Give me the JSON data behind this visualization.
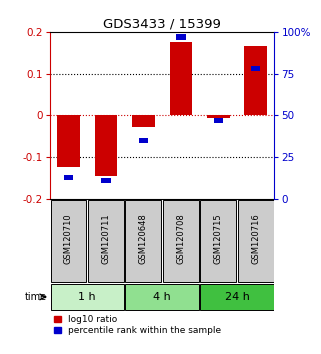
{
  "title": "GDS3433 / 15399",
  "samples": [
    "GSM120710",
    "GSM120711",
    "GSM120648",
    "GSM120708",
    "GSM120715",
    "GSM120716"
  ],
  "groups": [
    {
      "label": "1 h",
      "indices": [
        0,
        1
      ],
      "color": "#c8f0c8"
    },
    {
      "label": "4 h",
      "indices": [
        2,
        3
      ],
      "color": "#90e090"
    },
    {
      "label": "24 h",
      "indices": [
        4,
        5
      ],
      "color": "#40c040"
    }
  ],
  "log10_ratio": [
    -0.123,
    -0.145,
    -0.028,
    0.175,
    -0.005,
    0.165
  ],
  "percentile_rank": [
    13,
    11,
    35,
    97,
    47,
    78
  ],
  "ylim_left": [
    -0.2,
    0.2
  ],
  "ylim_right": [
    0,
    100
  ],
  "bar_width": 0.6,
  "red_color": "#cc0000",
  "blue_color": "#0000cc",
  "zero_line_color": "#cc0000",
  "bg_color": "#ffffff",
  "sample_box_color": "#cccccc",
  "legend_items": [
    "log10 ratio",
    "percentile rank within the sample"
  ]
}
